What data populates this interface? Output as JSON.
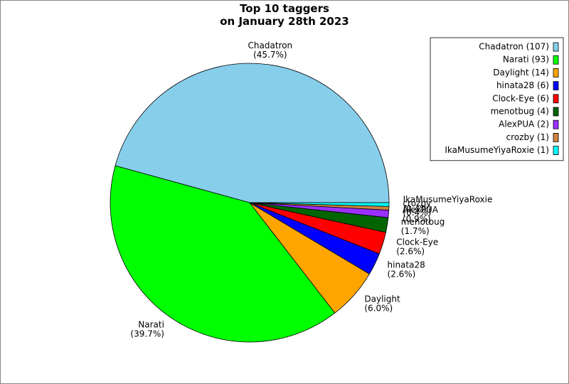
{
  "chart_data": {
    "type": "pie",
    "title": [
      "Top 10 taggers",
      "on January 28th 2023"
    ],
    "categories": [
      "Chadatron",
      "Narati",
      "Daylight",
      "hinata28",
      "Clock-Eye",
      "menotbug",
      "AlexPUA",
      "crozby",
      "IkaMusumeYiyaRoxie"
    ],
    "values": [
      107,
      93,
      14,
      6,
      6,
      4,
      2,
      1,
      1
    ],
    "value_labels": [
      "(45.7%)",
      "(39.7%)",
      "(6.0%)",
      "(2.6%)",
      "(2.6%)",
      "(1.7%)",
      "(0.9%)",
      "(0.4%)",
      "(0.4%)"
    ],
    "legend_labels": [
      "Chadatron (107)",
      "Narati (93)",
      "Daylight (14)",
      "hinata28 (6)",
      "Clock-Eye (6)",
      "menotbug (4)",
      "AlexPUA (2)",
      "crozby (1)",
      "IkaMusumeYiyaRoxie (1)"
    ],
    "colors": [
      "#87ceeb",
      "#00ff00",
      "#ffa500",
      "#0000ff",
      "#ff0000",
      "#006400",
      "#9b30ff",
      "#cd853f",
      "#00ffff"
    ],
    "legend": "upper right"
  }
}
